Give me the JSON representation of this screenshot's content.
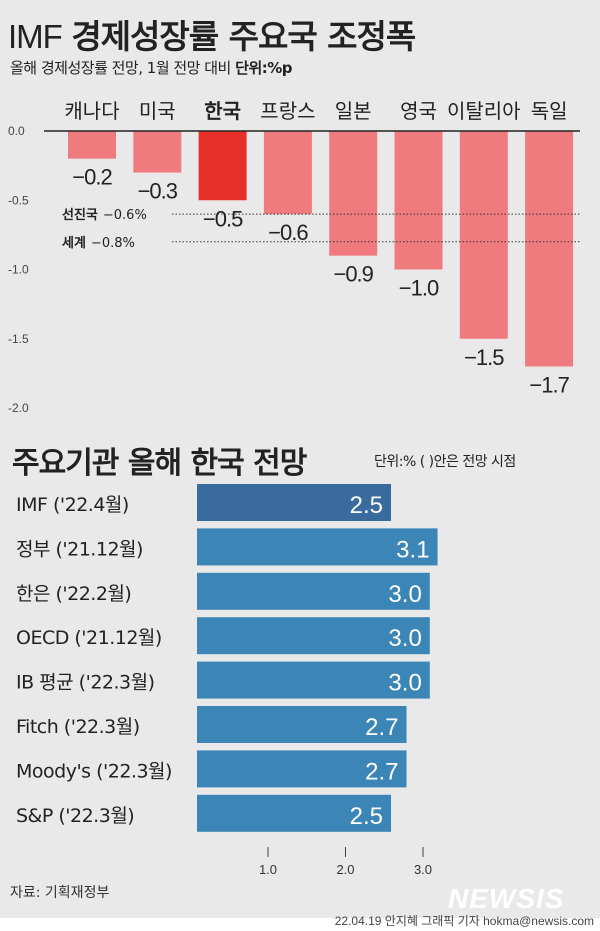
{
  "title": {
    "prefix": "IMF",
    "main": "경제성장률 주요국 조정폭"
  },
  "subtitle": {
    "text": "올해 경제성장률 전망, 1월 전망 대비",
    "unit": "단위:%p"
  },
  "chart_data": [
    {
      "type": "bar",
      "orientation": "vertical",
      "categories": [
        "캐나다",
        "미국",
        "한국",
        "프랑스",
        "일본",
        "영국",
        "이탈리아",
        "독일"
      ],
      "values": [
        -0.2,
        -0.3,
        -0.5,
        -0.6,
        -0.9,
        -1.0,
        -1.5,
        -1.7
      ],
      "value_labels": [
        "−0.2",
        "−0.3",
        "−0.5",
        "−0.6",
        "−0.9",
        "−1.0",
        "−1.5",
        "−1.7"
      ],
      "highlight": "한국",
      "yticks": [
        "0.0",
        "-0.5",
        "-1.0",
        "-1.5",
        "-2.0"
      ],
      "ylim": [
        -2.0,
        0.0
      ],
      "reference_lines": [
        {
          "label": "선진국",
          "value_label": "−0.6%",
          "value": -0.6
        },
        {
          "label": "세계",
          "value_label": "−0.8%",
          "value": -0.8
        }
      ],
      "colors": {
        "bar": "#f07b7f",
        "highlight": "#e8302a"
      }
    },
    {
      "type": "bar",
      "orientation": "horizontal",
      "title": "주요기관 올해 한국 전망",
      "note": "단위:% ( )안은 전망 시점",
      "categories": [
        "IMF ('22.4월)",
        "정부 ('21.12월)",
        "한은 ('22.2월)",
        "OECD ('21.12월)",
        "IB 평균 ('22.3월)",
        "Fitch ('22.3월)",
        "Moody's ('22.3월)",
        "S&P ('22.3월)"
      ],
      "values": [
        2.5,
        3.1,
        3.0,
        3.0,
        3.0,
        2.7,
        2.7,
        2.5
      ],
      "xticks": [
        "1.0",
        "2.0",
        "3.0"
      ],
      "colors": {
        "bar": "#3b86b6",
        "highlight": "#3a6b9e"
      }
    }
  ],
  "footer": {
    "source": "자료: 기획재정부",
    "logo": "NEWSIS",
    "credit": "22.04.19 안지혜 그래픽 기자 hokma@newsis.com"
  }
}
